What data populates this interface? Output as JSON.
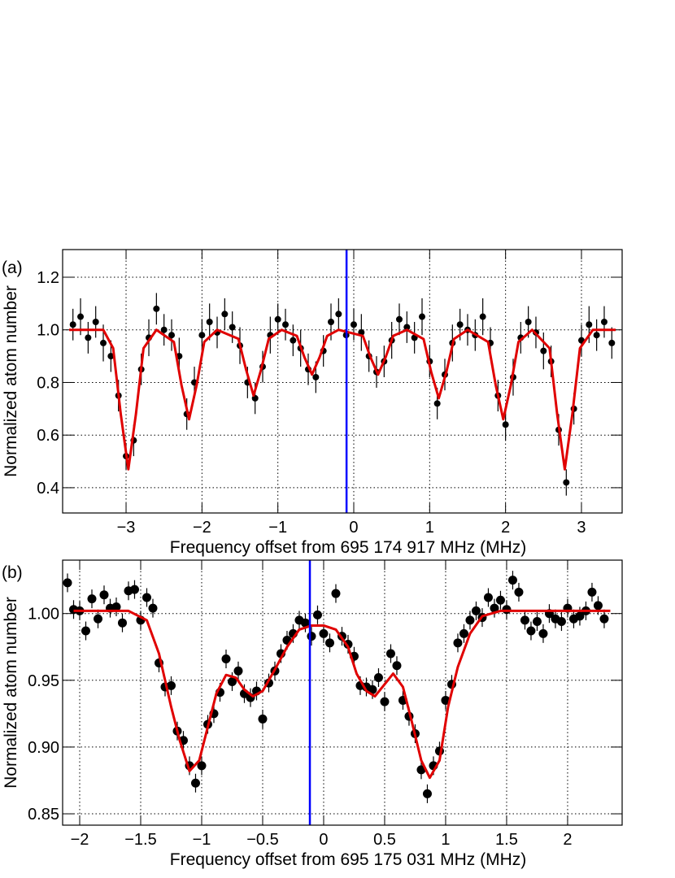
{
  "chart_data": [
    {
      "type": "scatter",
      "panel_label": "(a)",
      "x_label": "Frequency offset from 695 174 917 MHz (MHz)",
      "y_label": "Normalized atom number",
      "xlim": [
        -3.836,
        3.536
      ],
      "ylim": [
        0.304,
        1.305
      ],
      "xticks": [
        {
          "value": -3,
          "label": "−3"
        },
        {
          "value": -2,
          "label": "−2"
        },
        {
          "value": -1,
          "label": "−1"
        },
        0,
        1,
        2,
        3
      ],
      "yticks": [
        0.4,
        0.6,
        0.8,
        {
          "value": 1.0,
          "label": "1.0"
        },
        1.2
      ],
      "grid": true,
      "points": {
        "color": "#000000",
        "x": [
          -3.7,
          -3.6,
          -3.5,
          -3.4,
          -3.3,
          -3.2,
          -3.1,
          -3.0,
          -2.9,
          -2.8,
          -2.7,
          -2.6,
          -2.5,
          -2.4,
          -2.3,
          -2.2,
          -2.1,
          -2.0,
          -1.9,
          -1.8,
          -1.7,
          -1.6,
          -1.5,
          -1.4,
          -1.3,
          -1.2,
          -1.1,
          -1.0,
          -0.9,
          -0.8,
          -0.7,
          -0.6,
          -0.5,
          -0.4,
          -0.3,
          -0.2,
          -0.1,
          0.0,
          0.1,
          0.2,
          0.3,
          0.4,
          0.5,
          0.6,
          0.7,
          0.8,
          0.9,
          1.0,
          1.1,
          1.2,
          1.3,
          1.4,
          1.5,
          1.6,
          1.7,
          1.8,
          1.9,
          2.0,
          2.1,
          2.2,
          2.3,
          2.4,
          2.5,
          2.6,
          2.7,
          2.8,
          2.9,
          3.0,
          3.1,
          3.2,
          3.3,
          3.4
        ],
        "values": [
          1.02,
          1.05,
          0.97,
          1.03,
          0.95,
          0.9,
          0.75,
          0.52,
          0.58,
          0.85,
          0.97,
          1.08,
          1.0,
          0.98,
          0.9,
          0.68,
          0.8,
          0.98,
          1.03,
          0.99,
          1.06,
          1.01,
          0.94,
          0.8,
          0.74,
          0.86,
          0.98,
          1.04,
          1.02,
          0.96,
          0.93,
          0.85,
          0.82,
          0.92,
          1.03,
          1.06,
          0.98,
          1.02,
          0.99,
          0.9,
          0.84,
          0.88,
          0.96,
          1.04,
          1.01,
          0.97,
          1.05,
          0.88,
          0.72,
          0.83,
          0.95,
          1.02,
          1.0,
          0.98,
          1.05,
          0.95,
          0.75,
          0.64,
          0.82,
          0.97,
          1.03,
          0.99,
          0.92,
          0.88,
          0.62,
          0.42,
          0.7,
          0.96,
          1.02,
          0.98,
          1.03,
          0.95
        ],
        "errors": [
          0.06,
          0.07,
          0.06,
          0.06,
          0.07,
          0.06,
          0.06,
          0.05,
          0.06,
          0.06,
          0.07,
          0.06,
          0.06,
          0.06,
          0.07,
          0.06,
          0.06,
          0.06,
          0.07,
          0.06,
          0.06,
          0.06,
          0.07,
          0.06,
          0.06,
          0.06,
          0.07,
          0.06,
          0.06,
          0.06,
          0.07,
          0.06,
          0.06,
          0.06,
          0.07,
          0.06,
          0.06,
          0.06,
          0.07,
          0.06,
          0.06,
          0.06,
          0.07,
          0.06,
          0.06,
          0.06,
          0.07,
          0.06,
          0.06,
          0.06,
          0.07,
          0.06,
          0.06,
          0.06,
          0.07,
          0.06,
          0.06,
          0.06,
          0.07,
          0.06,
          0.06,
          0.06,
          0.07,
          0.06,
          0.06,
          0.05,
          0.06,
          0.06,
          0.07,
          0.06,
          0.06,
          0.06
        ]
      },
      "fit": {
        "color": "#e00000",
        "x": [
          -3.75,
          -3.3,
          -3.17,
          -3.07,
          -2.97,
          -2.87,
          -2.77,
          -2.6,
          -2.37,
          -2.27,
          -2.17,
          -2.07,
          -1.97,
          -1.8,
          -1.52,
          -1.42,
          -1.32,
          -1.22,
          -1.12,
          -0.95,
          -0.75,
          -0.65,
          -0.55,
          -0.45,
          -0.35,
          -0.2,
          0.12,
          0.22,
          0.32,
          0.42,
          0.52,
          0.7,
          0.92,
          1.02,
          1.12,
          1.22,
          1.32,
          1.5,
          1.77,
          1.87,
          1.97,
          2.07,
          2.17,
          2.35,
          2.58,
          2.68,
          2.78,
          2.88,
          2.98,
          3.15,
          3.45
        ],
        "values": [
          1.0,
          1.0,
          0.93,
          0.68,
          0.47,
          0.68,
          0.93,
          1.0,
          0.954,
          0.79,
          0.66,
          0.79,
          0.954,
          1.0,
          0.966,
          0.85,
          0.75,
          0.85,
          0.966,
          1.0,
          0.977,
          0.896,
          0.83,
          0.896,
          0.977,
          1.0,
          0.977,
          0.896,
          0.83,
          0.896,
          0.977,
          1.0,
          0.965,
          0.84,
          0.74,
          0.84,
          0.965,
          1.0,
          0.954,
          0.79,
          0.66,
          0.79,
          0.954,
          1.0,
          0.93,
          0.68,
          0.47,
          0.68,
          0.93,
          1.0,
          1.0
        ]
      },
      "marker_line": {
        "x": -0.095,
        "color": "#0000ff"
      }
    },
    {
      "type": "scatter",
      "panel_label": "(b)",
      "x_label": "Frequency offset from 695 175 031 MHz (MHz)",
      "y_label": "Normalized atom number",
      "xlim": [
        -2.14,
        2.447
      ],
      "ylim": [
        0.8415,
        1.04
      ],
      "xticks": [
        {
          "value": -2,
          "label": "−2"
        },
        {
          "value": -1.5,
          "label": "−1.5"
        },
        {
          "value": -1,
          "label": "−1"
        },
        {
          "value": -0.5,
          "label": "−0.5"
        },
        0,
        0.5,
        1,
        1.5,
        2
      ],
      "yticks": [
        0.85,
        {
          "value": 0.9,
          "label": "0.90"
        },
        0.95,
        {
          "value": 1.0,
          "label": "1.00"
        }
      ],
      "grid": true,
      "points": {
        "color": "#000000",
        "x": [
          -2.1,
          -2.05,
          -2.0,
          -1.95,
          -1.9,
          -1.85,
          -1.8,
          -1.75,
          -1.7,
          -1.65,
          -1.6,
          -1.55,
          -1.5,
          -1.45,
          -1.4,
          -1.35,
          -1.3,
          -1.25,
          -1.2,
          -1.15,
          -1.1,
          -1.05,
          -1.0,
          -0.95,
          -0.9,
          -0.85,
          -0.8,
          -0.75,
          -0.7,
          -0.65,
          -0.6,
          -0.55,
          -0.5,
          -0.45,
          -0.4,
          -0.35,
          -0.3,
          -0.25,
          -0.2,
          -0.15,
          -0.1,
          -0.05,
          0.0,
          0.05,
          0.1,
          0.15,
          0.2,
          0.25,
          0.3,
          0.35,
          0.4,
          0.45,
          0.5,
          0.55,
          0.6,
          0.65,
          0.7,
          0.75,
          0.8,
          0.85,
          0.9,
          0.95,
          1.0,
          1.05,
          1.1,
          1.15,
          1.2,
          1.25,
          1.3,
          1.35,
          1.4,
          1.45,
          1.5,
          1.55,
          1.6,
          1.65,
          1.7,
          1.75,
          1.8,
          1.85,
          1.9,
          1.95,
          2.0,
          2.05,
          2.1,
          2.15,
          2.2,
          2.25,
          2.3
        ],
        "values": [
          1.023,
          1.003,
          1.002,
          0.987,
          1.011,
          0.996,
          1.014,
          1.004,
          1.005,
          0.993,
          1.017,
          1.018,
          0.995,
          1.012,
          1.004,
          0.963,
          0.945,
          0.946,
          0.912,
          0.905,
          0.886,
          0.873,
          0.886,
          0.917,
          0.925,
          0.941,
          0.966,
          0.949,
          0.957,
          0.94,
          0.937,
          0.942,
          0.921,
          0.948,
          0.957,
          0.97,
          0.98,
          0.985,
          0.995,
          0.993,
          0.983,
          0.999,
          0.985,
          0.978,
          1.015,
          0.983,
          0.977,
          0.968,
          0.946,
          0.945,
          0.943,
          0.952,
          0.934,
          0.97,
          0.961,
          0.935,
          0.923,
          0.91,
          0.883,
          0.865,
          0.886,
          0.897,
          0.935,
          0.947,
          0.978,
          0.985,
          0.995,
          1.002,
          0.997,
          1.012,
          1.004,
          1.01,
          1.003,
          1.025,
          1.016,
          0.995,
          0.987,
          0.994,
          0.985,
          1.0,
          0.996,
          0.994,
          1.004,
          0.996,
          0.998,
          1.002,
          1.016,
          1.006,
          0.996
        ],
        "errors": [
          0.007,
          0.007,
          0.007,
          0.007,
          0.007,
          0.007,
          0.007,
          0.007,
          0.007,
          0.007,
          0.007,
          0.007,
          0.007,
          0.007,
          0.007,
          0.007,
          0.007,
          0.007,
          0.007,
          0.007,
          0.007,
          0.007,
          0.007,
          0.007,
          0.007,
          0.007,
          0.007,
          0.007,
          0.007,
          0.007,
          0.007,
          0.007,
          0.007,
          0.007,
          0.007,
          0.007,
          0.007,
          0.007,
          0.007,
          0.007,
          0.007,
          0.007,
          0.007,
          0.007,
          0.007,
          0.007,
          0.007,
          0.007,
          0.007,
          0.007,
          0.007,
          0.007,
          0.007,
          0.007,
          0.007,
          0.007,
          0.007,
          0.007,
          0.007,
          0.007,
          0.007,
          0.007,
          0.007,
          0.007,
          0.007,
          0.007,
          0.007,
          0.007,
          0.007,
          0.007,
          0.007,
          0.007,
          0.007,
          0.007,
          0.007,
          0.007,
          0.007,
          0.007,
          0.007,
          0.007,
          0.007,
          0.007,
          0.007,
          0.007,
          0.007,
          0.007,
          0.007,
          0.007,
          0.007
        ]
      },
      "fit": {
        "color": "#e00000",
        "x": [
          -2.05,
          -1.6,
          -1.45,
          -1.35,
          -1.25,
          -1.18,
          -1.1,
          -1.02,
          -0.95,
          -0.88,
          -0.8,
          -0.72,
          -0.65,
          -0.58,
          -0.5,
          -0.4,
          -0.3,
          -0.2,
          -0.1,
          0.0,
          0.1,
          0.2,
          0.27,
          0.35,
          0.42,
          0.5,
          0.57,
          0.65,
          0.72,
          0.8,
          0.87,
          0.95,
          1.02,
          1.1,
          1.2,
          1.3,
          1.45,
          2.35
        ],
        "values": [
          1.002,
          1.002,
          0.995,
          0.97,
          0.93,
          0.905,
          0.882,
          0.89,
          0.915,
          0.94,
          0.954,
          0.952,
          0.943,
          0.938,
          0.942,
          0.958,
          0.975,
          0.988,
          0.991,
          0.991,
          0.988,
          0.975,
          0.955,
          0.942,
          0.938,
          0.947,
          0.955,
          0.945,
          0.92,
          0.89,
          0.877,
          0.89,
          0.93,
          0.96,
          0.985,
          0.998,
          1.002,
          1.002
        ]
      },
      "marker_line": {
        "x": -0.113,
        "color": "#0000ff"
      }
    }
  ]
}
